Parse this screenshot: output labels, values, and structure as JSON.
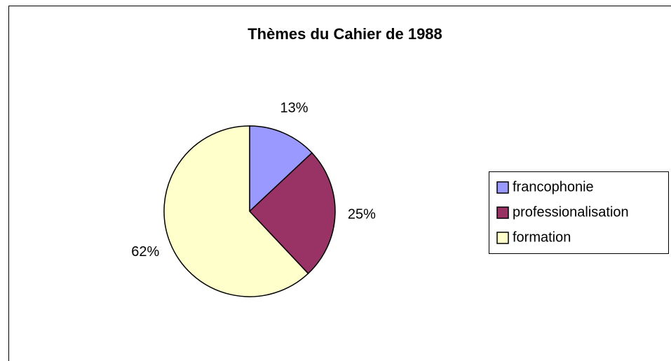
{
  "chart_data": {
    "type": "pie",
    "title": "Thèmes du Cahier de 1988",
    "categories": [
      "francophonie",
      "professionalisation",
      "formation"
    ],
    "values": [
      13,
      25,
      62
    ],
    "value_labels": [
      "13%",
      "25%",
      "62%"
    ],
    "colors": [
      "#9999ff",
      "#993366",
      "#ffffcc"
    ],
    "legend": "right"
  }
}
